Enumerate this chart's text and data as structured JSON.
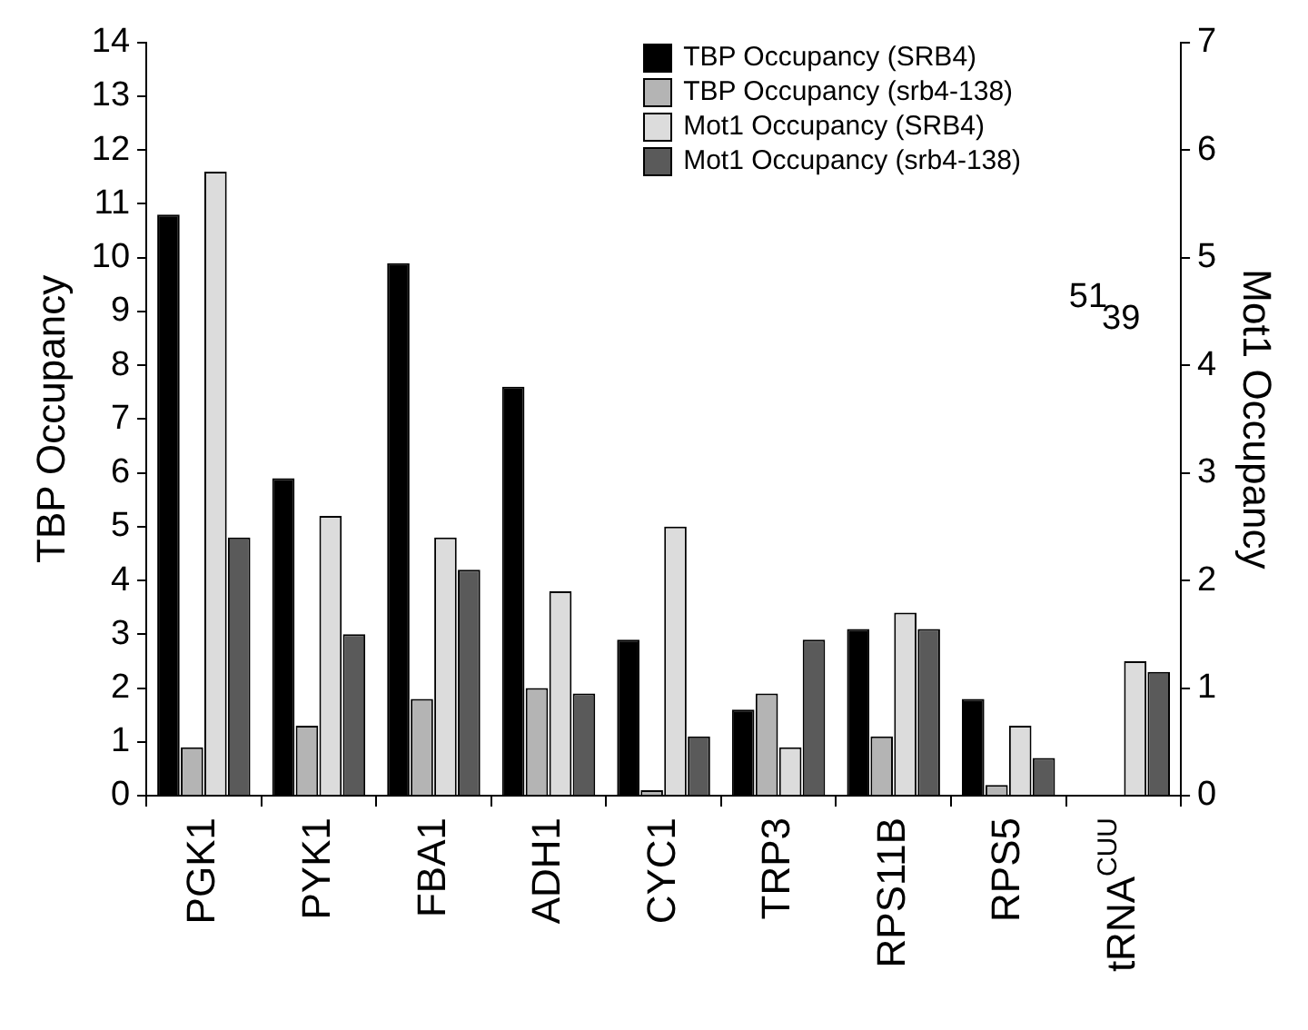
{
  "chart_data": {
    "type": "bar",
    "categories": [
      "PGK1",
      "PYK1",
      "FBA1",
      "ADH1",
      "CYC1",
      "TRP3",
      "RPS11B",
      "RPS5",
      "tRNA$^{CUU}$"
    ],
    "series": [
      {
        "name": "TBP Occupancy (SRB4)",
        "color": "#000000",
        "values": [
          10.8,
          5.9,
          9.9,
          7.6,
          2.9,
          1.6,
          3.1,
          1.8,
          null
        ]
      },
      {
        "name": "TBP Occupancy (srb4-138)",
        "color": "#b4b4b4",
        "values": [
          0.9,
          1.3,
          1.8,
          2.0,
          0.1,
          1.9,
          1.1,
          0.2,
          null
        ]
      },
      {
        "name": "Mot1 Occupancy (SRB4)",
        "color": "#dcdcdc",
        "axis": "y2",
        "values": [
          5.8,
          2.6,
          2.4,
          1.9,
          2.5,
          0.45,
          1.7,
          0.65,
          1.25
        ]
      },
      {
        "name": "Mot1 Occupancy (srb4-138)",
        "color": "#5a5a5a",
        "axis": "y2",
        "values": [
          2.4,
          1.5,
          2.1,
          0.95,
          0.55,
          1.45,
          1.55,
          0.35,
          1.15
        ]
      }
    ],
    "annotations": [
      "51",
      "39"
    ],
    "ylabel": "TBP Occupancy",
    "y2label": "Mot1 Occupancy",
    "ylim": [
      0,
      14
    ],
    "yticks": [
      0,
      1,
      2,
      3,
      4,
      5,
      6,
      7,
      8,
      9,
      10,
      11,
      12,
      13,
      14
    ],
    "y2lim": [
      0,
      7
    ],
    "y2ticks": [
      0,
      1,
      2,
      3,
      4,
      5,
      6,
      7
    ],
    "legend": "top right",
    "grid": false
  }
}
